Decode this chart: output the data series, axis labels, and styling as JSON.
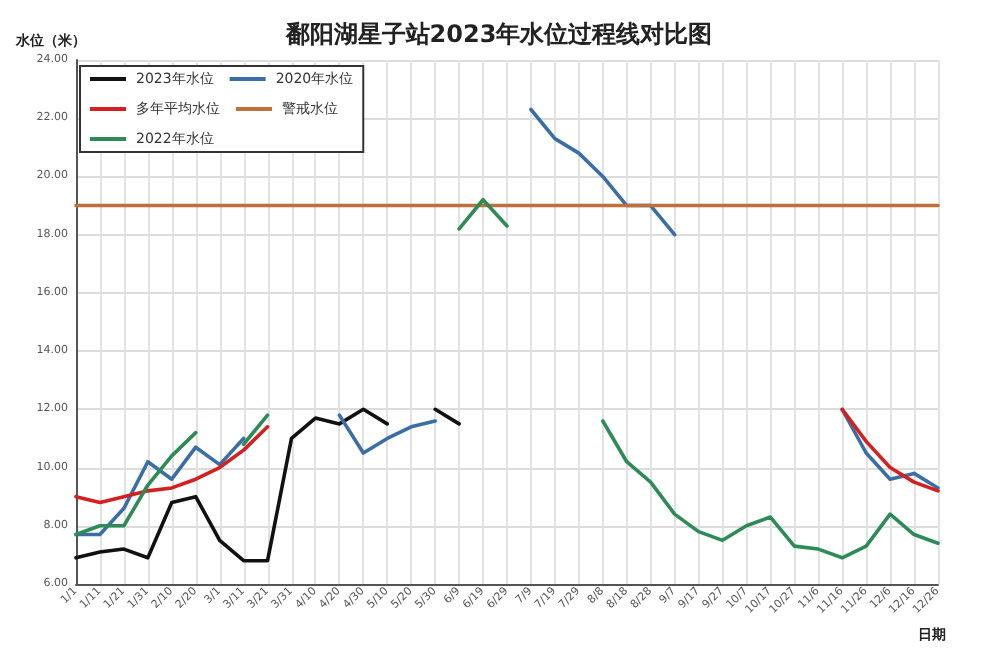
{
  "chart_data": {
    "type": "line",
    "title": "鄱阳湖星子站2023年水位过程线对比图",
    "ylabel": "水位（米）",
    "xlabel": "日期",
    "categories": [
      "1/1",
      "1/11",
      "1/21",
      "1/31",
      "2/10",
      "2/20",
      "3/1",
      "3/11",
      "3/21",
      "3/31",
      "4/10",
      "4/20",
      "4/30",
      "5/10",
      "5/20",
      "5/30",
      "6/9",
      "6/19",
      "6/29",
      "7/9",
      "7/19",
      "7/29",
      "8/8",
      "8/18",
      "8/28",
      "9/7",
      "9/17",
      "9/27",
      "10/7",
      "10/17",
      "10/27",
      "11/6",
      "11/16",
      "11/26",
      "12/6",
      "12/16",
      "12/26"
    ],
    "series": [
      {
        "name": "2023年水位",
        "color": "#111111",
        "values": [
          6.9,
          7.1,
          7.2,
          6.9,
          8.8,
          9.0,
          7.5,
          6.8,
          6.8,
          11.0,
          11.7,
          11.5,
          12.0,
          11.5,
          null,
          12.0,
          11.5,
          null,
          null,
          null,
          null,
          null,
          null,
          null,
          null,
          null,
          null,
          null,
          null,
          null,
          null,
          null,
          null,
          null,
          null,
          null,
          null
        ]
      },
      {
        "name": "2020年水位",
        "color": "#3a6ea5",
        "values": [
          7.7,
          7.7,
          8.6,
          10.2,
          9.6,
          10.7,
          10.1,
          11.0,
          null,
          null,
          null,
          11.8,
          10.5,
          11.0,
          11.4,
          11.6,
          null,
          null,
          null,
          22.3,
          21.3,
          20.8,
          20.0,
          19.0,
          19.0,
          18.0,
          null,
          null,
          null,
          null,
          null,
          null,
          12.0,
          10.5,
          9.6,
          9.8,
          9.3
        ]
      },
      {
        "name": "多年平均水位",
        "color": "#d42020",
        "values": [
          9.0,
          8.8,
          9.0,
          9.2,
          9.3,
          9.6,
          10.0,
          10.6,
          11.4,
          null,
          null,
          null,
          null,
          null,
          null,
          null,
          null,
          null,
          null,
          null,
          null,
          null,
          null,
          null,
          null,
          null,
          null,
          null,
          null,
          null,
          null,
          null,
          12.0,
          10.9,
          10.0,
          9.5,
          9.2
        ]
      },
      {
        "name": "警戒水位",
        "color": "#c0703a",
        "values": [
          19,
          19,
          19,
          19,
          19,
          19,
          19,
          19,
          19,
          19,
          19,
          19,
          19,
          19,
          19,
          19,
          19,
          19,
          19,
          19,
          19,
          19,
          19,
          19,
          19,
          19,
          19,
          19,
          19,
          19,
          19,
          19,
          19,
          19,
          19,
          19,
          19
        ]
      },
      {
        "name": "2022年水位",
        "color": "#2e8b57",
        "values": [
          7.7,
          8.0,
          8.0,
          9.4,
          10.4,
          11.2,
          null,
          10.8,
          11.8,
          null,
          null,
          null,
          null,
          null,
          null,
          null,
          18.2,
          19.2,
          18.3,
          null,
          null,
          null,
          11.6,
          10.2,
          9.5,
          8.4,
          7.8,
          7.5,
          8.0,
          8.3,
          7.3,
          7.2,
          6.9,
          7.3,
          8.4,
          7.7,
          7.4
        ]
      }
    ],
    "ylim": [
      6,
      24
    ],
    "yticks": [
      {
        "value": 6,
        "label": "6.00"
      },
      {
        "value": 8,
        "label": "8.00"
      },
      {
        "value": 10,
        "label": "10.00"
      },
      {
        "value": 12,
        "label": "12.00"
      },
      {
        "value": 14,
        "label": "14.00"
      },
      {
        "value": 16,
        "label": "16.00"
      },
      {
        "value": 18,
        "label": "18.00"
      },
      {
        "value": 20,
        "label": "20.00"
      },
      {
        "value": 22,
        "label": "22.00"
      },
      {
        "value": 24,
        "label": "24.00"
      }
    ],
    "grid": true,
    "legend": "top left",
    "marker": "none",
    "line_style": "solid"
  }
}
